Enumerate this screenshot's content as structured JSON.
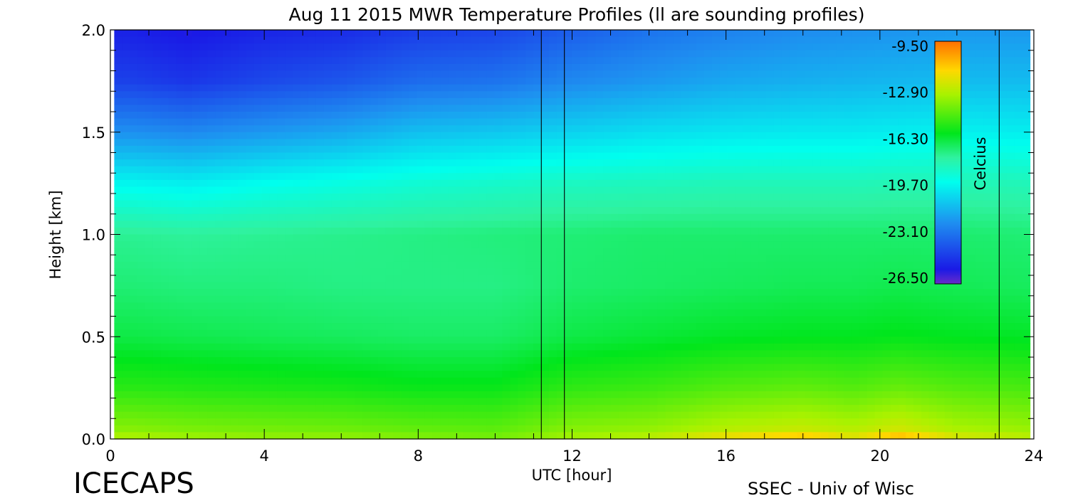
{
  "chart_data": {
    "type": "heatmap",
    "title": "Aug 11 2015 MWR Temperature Profiles (ll are sounding profiles)",
    "xlabel": "UTC [hour]",
    "ylabel": "Height [km]",
    "xlim": [
      0,
      24
    ],
    "ylim": [
      0.0,
      2.0
    ],
    "x_ticks": [
      "0",
      "4",
      "8",
      "12",
      "16",
      "20",
      "24"
    ],
    "y_ticks": [
      "0.0",
      "0.5",
      "1.0",
      "1.5",
      "2.0"
    ],
    "data_start_hour": 0.1,
    "data_end_hour": 23.9,
    "sounding_lines_hours": [
      11.2,
      11.8,
      23.1
    ],
    "colorbar": {
      "label": "Celcius",
      "min": -26.5,
      "max": -9.5,
      "tick_labels": [
        "-9.50",
        "-12.90",
        "-16.30",
        "-19.70",
        "-23.10",
        "-26.50"
      ],
      "tick_values": [
        -9.5,
        -12.9,
        -16.3,
        -19.7,
        -23.1,
        -26.5
      ]
    },
    "heights_km": [
      0.0,
      0.05,
      0.25,
      0.5,
      0.75,
      1.0,
      1.25,
      1.5,
      1.75,
      2.0
    ],
    "profiles": [
      {
        "hour": 0.5,
        "temps": [
          -13.0,
          -13.8,
          -15.3,
          -16.5,
          -17.1,
          -17.5,
          -19.6,
          -22.2,
          -24.4,
          -25.3
        ]
      },
      {
        "hour": 2.0,
        "temps": [
          -13.3,
          -14.0,
          -15.4,
          -16.6,
          -17.2,
          -17.6,
          -19.8,
          -22.4,
          -24.7,
          -25.6
        ]
      },
      {
        "hour": 4.0,
        "temps": [
          -13.5,
          -14.1,
          -15.5,
          -16.7,
          -17.2,
          -17.5,
          -19.4,
          -22.0,
          -24.2,
          -25.2
        ]
      },
      {
        "hour": 6.0,
        "temps": [
          -13.5,
          -14.2,
          -15.6,
          -16.8,
          -17.3,
          -17.4,
          -19.1,
          -21.6,
          -23.8,
          -25.0
        ]
      },
      {
        "hour": 8.0,
        "temps": [
          -13.8,
          -14.4,
          -15.8,
          -16.9,
          -17.3,
          -17.3,
          -18.8,
          -21.0,
          -23.2,
          -24.5
        ]
      },
      {
        "hour": 10.0,
        "temps": [
          -14.0,
          -14.5,
          -15.8,
          -16.9,
          -17.3,
          -17.2,
          -18.6,
          -20.8,
          -23.0,
          -24.3
        ]
      },
      {
        "hour": 12.0,
        "temps": [
          -13.2,
          -13.8,
          -15.2,
          -16.5,
          -17.0,
          -17.1,
          -18.4,
          -20.5,
          -22.4,
          -23.6
        ]
      },
      {
        "hour": 14.0,
        "temps": [
          -12.8,
          -13.6,
          -15.0,
          -16.3,
          -16.9,
          -17.0,
          -18.3,
          -20.2,
          -22.0,
          -23.0
        ]
      },
      {
        "hour": 16.0,
        "temps": [
          -11.6,
          -13.0,
          -14.6,
          -16.1,
          -16.8,
          -17.0,
          -18.2,
          -20.0,
          -21.6,
          -22.6
        ]
      },
      {
        "hour": 18.0,
        "temps": [
          -10.8,
          -12.7,
          -14.4,
          -16.0,
          -16.7,
          -17.0,
          -18.2,
          -19.9,
          -21.4,
          -22.3
        ]
      },
      {
        "hour": 19.3,
        "temps": [
          -12.0,
          -13.0,
          -14.6,
          -16.0,
          -16.7,
          -17.0,
          -18.2,
          -19.9,
          -21.3,
          -22.2
        ]
      },
      {
        "hour": 20.5,
        "temps": [
          -10.5,
          -12.5,
          -14.3,
          -15.9,
          -16.6,
          -17.0,
          -18.1,
          -19.8,
          -21.2,
          -22.1
        ]
      },
      {
        "hour": 22.0,
        "temps": [
          -12.2,
          -13.2,
          -14.6,
          -16.0,
          -16.7,
          -17.0,
          -18.1,
          -19.7,
          -21.1,
          -22.0
        ]
      },
      {
        "hour": 23.9,
        "temps": [
          -12.8,
          -13.5,
          -14.8,
          -16.1,
          -16.8,
          -17.1,
          -18.2,
          -19.8,
          -21.1,
          -22.0
        ]
      }
    ]
  },
  "footer": {
    "brand": "ICECAPS",
    "credit": "SSEC - Univ of Wisc"
  }
}
